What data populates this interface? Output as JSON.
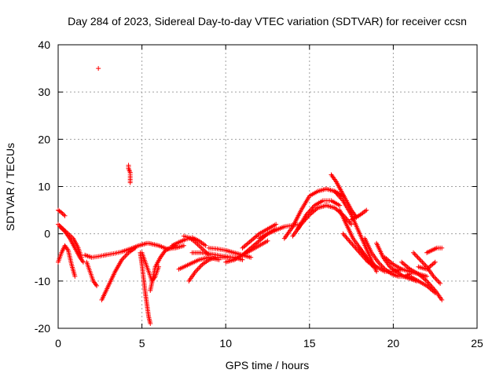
{
  "chart_data": {
    "type": "scatter",
    "title": "Day 284 of 2023, Sidereal Day-to-day VTEC variation (SDTVAR) for receiver ccsn",
    "xlabel": "GPS time / hours",
    "ylabel": "SDTVAR / TECUs",
    "xlim": [
      0,
      25
    ],
    "ylim": [
      -20,
      40
    ],
    "x_ticks": [
      0,
      5,
      10,
      15,
      20,
      25
    ],
    "y_ticks": [
      -20,
      -10,
      0,
      10,
      20,
      30,
      40
    ],
    "grid": true,
    "marker": "+",
    "series": [
      {
        "name": "SDTVAR",
        "color": "#ff0000",
        "tracks": [
          {
            "x": [
              0.0,
              0.2,
              0.4
            ],
            "y": [
              5.0,
              4.5,
              3.8
            ]
          },
          {
            "x": [
              0.0,
              0.3,
              0.6,
              0.9,
              1.2,
              1.4
            ],
            "y": [
              2.0,
              1.0,
              0.0,
              -1.0,
              -3.0,
              -5.0
            ]
          },
          {
            "x": [
              0.0,
              0.2,
              0.4,
              0.6,
              0.8,
              1.0
            ],
            "y": [
              -6.0,
              -4.0,
              -2.5,
              -3.5,
              -6.5,
              -9.0
            ]
          },
          {
            "x": [
              0.1,
              0.4,
              0.7,
              1.0,
              1.3,
              1.5
            ],
            "y": [
              1.5,
              0.5,
              -1.0,
              -3.0,
              -5.0,
              -6.0
            ]
          },
          {
            "x": [
              1.6,
              2.0,
              2.4,
              2.8
            ],
            "y": [
              -4.5,
              -5.0,
              -4.8,
              -4.5
            ]
          },
          {
            "x": [
              1.7,
              1.9,
              2.1,
              2.3
            ],
            "y": [
              -6.0,
              -8.0,
              -10.0,
              -11.0
            ]
          },
          {
            "x": [
              2.4
            ],
            "y": [
              35.0
            ]
          },
          {
            "x": [
              2.6,
              3.0,
              3.4,
              3.8,
              4.2,
              4.6
            ],
            "y": [
              -14.0,
              -11.0,
              -8.0,
              -5.5,
              -4.0,
              -3.0
            ]
          },
          {
            "x": [
              2.8,
              3.3,
              3.8,
              4.3,
              4.8,
              5.3
            ],
            "y": [
              -4.5,
              -4.2,
              -3.8,
              -3.2,
              -2.5,
              -2.0
            ]
          },
          {
            "x": [
              4.2,
              4.2,
              4.3,
              4.3,
              4.3
            ],
            "y": [
              14.5,
              13.8,
              13.0,
              12.2,
              10.8
            ]
          },
          {
            "x": [
              4.9,
              5.0,
              5.1,
              5.2,
              5.3,
              5.4,
              5.5
            ],
            "y": [
              -4.0,
              -6.5,
              -9.5,
              -12.5,
              -15.0,
              -17.5,
              -19.0
            ]
          },
          {
            "x": [
              5.0,
              5.2,
              5.4,
              5.6,
              5.8,
              6.0
            ],
            "y": [
              -4.0,
              -6.0,
              -8.0,
              -10.0,
              -9.0,
              -7.0
            ]
          },
          {
            "x": [
              5.5,
              5.8,
              6.1,
              6.4,
              6.7,
              7.0
            ],
            "y": [
              -12.0,
              -7.0,
              -5.0,
              -3.5,
              -3.0,
              -2.5
            ]
          },
          {
            "x": [
              5.4,
              6.0,
              6.5,
              7.0,
              7.5
            ],
            "y": [
              -2.0,
              -2.5,
              -3.2,
              -3.0,
              -2.5
            ]
          },
          {
            "x": [
              6.8,
              7.2,
              7.6,
              8.0,
              8.4,
              8.8
            ],
            "y": [
              -2.5,
              -1.8,
              -1.2,
              -0.8,
              -1.5,
              -2.5
            ]
          },
          {
            "x": [
              7.5,
              7.8,
              8.1,
              8.4,
              8.7,
              9.0
            ],
            "y": [
              -0.5,
              -0.8,
              -1.5,
              -2.5,
              -3.5,
              -4.5
            ]
          },
          {
            "x": [
              7.2,
              7.8,
              8.4,
              9.0,
              9.6
            ],
            "y": [
              -7.5,
              -6.5,
              -5.5,
              -5.0,
              -5.5
            ]
          },
          {
            "x": [
              7.8,
              8.2,
              8.6,
              9.0,
              9.4,
              9.8,
              10.2
            ],
            "y": [
              -10.0,
              -8.0,
              -6.5,
              -5.5,
              -5.0,
              -5.0,
              -5.0
            ]
          },
          {
            "x": [
              8.0,
              8.5,
              9.0,
              9.5,
              10.0,
              10.5,
              11.0
            ],
            "y": [
              -4.0,
              -4.0,
              -4.2,
              -4.5,
              -4.8,
              -5.0,
              -5.5
            ]
          },
          {
            "x": [
              9.0,
              9.5,
              10.0,
              10.5,
              11.0,
              11.5
            ],
            "y": [
              -3.0,
              -3.2,
              -3.5,
              -4.0,
              -4.5,
              -5.0
            ]
          },
          {
            "x": [
              10.0,
              10.5,
              11.0,
              11.5,
              12.0,
              12.5
            ],
            "y": [
              -6.0,
              -5.5,
              -4.5,
              -3.5,
              -2.5,
              -1.5
            ]
          },
          {
            "x": [
              10.5,
              11.0,
              11.5,
              12.0,
              12.5,
              13.0
            ],
            "y": [
              -5.5,
              -4.5,
              -3.0,
              -1.5,
              0.0,
              1.0
            ]
          },
          {
            "x": [
              11.0,
              11.5,
              12.0,
              12.5,
              13.0
            ],
            "y": [
              -3.0,
              -1.5,
              0.0,
              1.0,
              2.0
            ]
          },
          {
            "x": [
              12.0,
              12.5,
              13.0,
              13.5,
              14.0,
              14.5
            ],
            "y": [
              -1.0,
              0.0,
              0.8,
              1.5,
              1.8,
              2.0
            ]
          },
          {
            "x": [
              13.5,
              14.0,
              14.5,
              15.0,
              15.5,
              16.0,
              16.5,
              17.0
            ],
            "y": [
              -1.0,
              1.5,
              5.0,
              8.0,
              9.0,
              9.5,
              9.0,
              8.0
            ]
          },
          {
            "x": [
              14.0,
              14.5,
              15.0,
              15.5,
              16.0,
              16.5,
              17.0,
              17.5
            ],
            "y": [
              -0.5,
              2.0,
              4.0,
              5.5,
              6.0,
              5.5,
              4.0,
              2.0
            ]
          },
          {
            "x": [
              14.3,
              14.8,
              15.3,
              15.8,
              16.3,
              16.8
            ],
            "y": [
              1.0,
              4.0,
              6.0,
              7.0,
              7.0,
              6.0
            ]
          },
          {
            "x": [
              16.3,
              16.6,
              16.9,
              17.2,
              17.5,
              17.8
            ],
            "y": [
              12.5,
              11.0,
              9.0,
              7.0,
              5.0,
              3.5
            ]
          },
          {
            "x": [
              16.5,
              17.0,
              17.5,
              18.0,
              18.5,
              19.0
            ],
            "y": [
              9.0,
              7.0,
              4.0,
              0.0,
              -4.0,
              -8.0
            ]
          },
          {
            "x": [
              16.8,
              17.2,
              17.6,
              18.0,
              18.4,
              18.8
            ],
            "y": [
              5.0,
              2.0,
              -1.0,
              -3.0,
              -5.0,
              -7.0
            ]
          },
          {
            "x": [
              17.0,
              17.5,
              18.0,
              18.5,
              19.0
            ],
            "y": [
              0.0,
              -2.0,
              -4.0,
              -6.0,
              -7.0
            ]
          },
          {
            "x": [
              17.5,
              17.8,
              18.1,
              18.4
            ],
            "y": [
              3.0,
              3.5,
              4.2,
              5.0
            ]
          },
          {
            "x": [
              18.0,
              18.5,
              19.0,
              19.5,
              20.0,
              20.5
            ],
            "y": [
              -3.0,
              -5.5,
              -7.0,
              -8.0,
              -8.0,
              -7.5
            ]
          },
          {
            "x": [
              18.3,
              18.7,
              19.1,
              19.5,
              19.9,
              20.3,
              20.7,
              21.0
            ],
            "y": [
              -1.0,
              -4.0,
              -6.0,
              -7.5,
              -8.5,
              -9.0,
              -9.0,
              -8.5
            ]
          },
          {
            "x": [
              19.0,
              19.4,
              19.8,
              20.2,
              20.6,
              21.0,
              21.4
            ],
            "y": [
              -2.0,
              -5.0,
              -7.0,
              -8.0,
              -9.0,
              -9.5,
              -10.0
            ]
          },
          {
            "x": [
              19.5,
              20.0,
              20.5,
              21.0,
              21.5,
              22.0
            ],
            "y": [
              -5.0,
              -6.5,
              -7.5,
              -8.0,
              -8.5,
              -9.0
            ]
          },
          {
            "x": [
              20.5,
              21.0,
              21.5,
              22.0,
              22.5,
              22.9
            ],
            "y": [
              -6.0,
              -7.5,
              -8.5,
              -10.0,
              -12.0,
              -14.0
            ]
          },
          {
            "x": [
              21.0,
              21.5,
              22.0,
              22.5
            ],
            "y": [
              -9.0,
              -10.0,
              -11.0,
              -12.5
            ]
          },
          {
            "x": [
              21.2,
              21.6,
              22.0,
              22.4,
              22.8
            ],
            "y": [
              -4.0,
              -5.5,
              -7.0,
              -9.0,
              -10.5
            ]
          },
          {
            "x": [
              22.0,
              22.3,
              22.6,
              22.9
            ],
            "y": [
              -4.0,
              -3.5,
              -3.0,
              -3.0
            ]
          },
          {
            "x": [
              21.5,
              22.0,
              22.5
            ],
            "y": [
              -7.0,
              -7.5,
              -6.0
            ]
          }
        ]
      }
    ]
  }
}
